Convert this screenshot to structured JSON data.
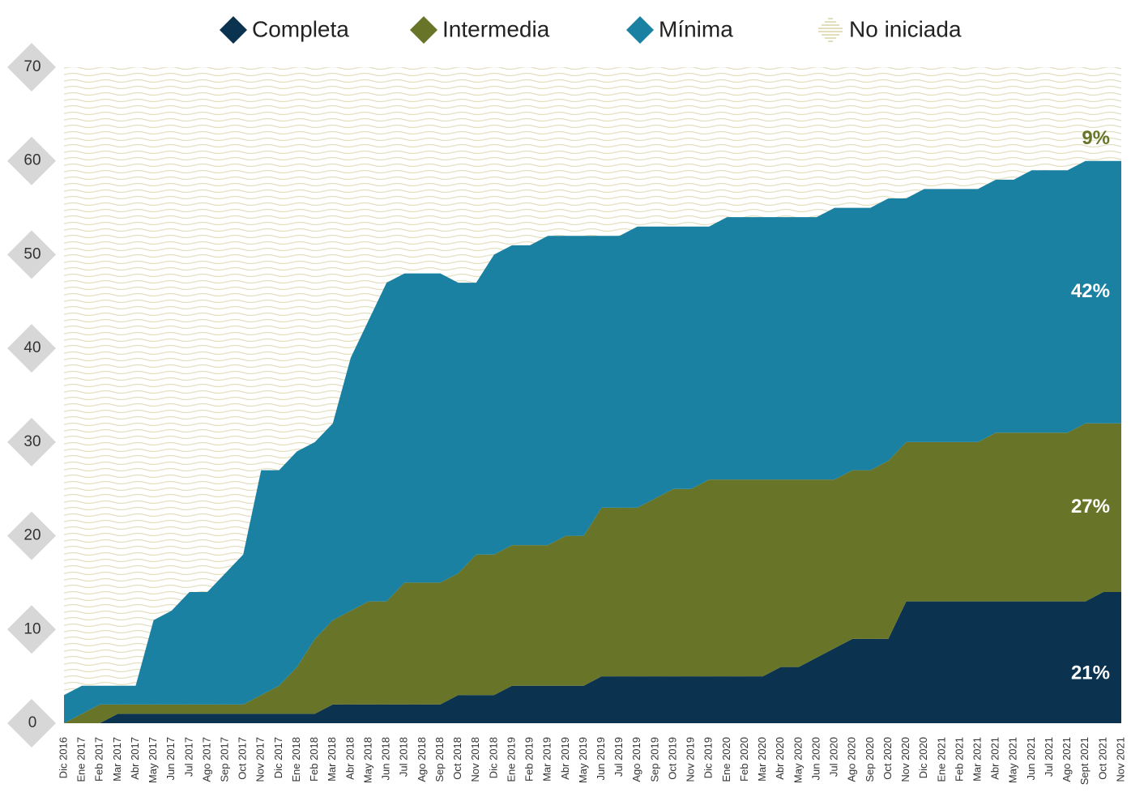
{
  "chart_data": {
    "type": "stacked_area",
    "categories": [
      "Dic 2016",
      "Ene 2017",
      "Feb 2017",
      "Mar 2017",
      "Abr 2017",
      "May 2017",
      "Jun 2017",
      "Jul 2017",
      "Ago 2017",
      "Sep 2017",
      "Oct 2017",
      "Nov 2017",
      "Dic 2017",
      "Ene 2018",
      "Feb 2018",
      "Mar 2018",
      "Abr 2018",
      "May 2018",
      "Jun 2018",
      "Jul 2018",
      "Ago 2018",
      "Sep 2018",
      "Oct 2018",
      "Nov 2018",
      "Dic 2018",
      "Ene 2019",
      "Feb 2019",
      "Mar 2019",
      "Abr 2019",
      "May 2019",
      "Jun 2019",
      "Jul 2019",
      "Ago 2019",
      "Sep 2019",
      "Oct 2019",
      "Nov 2019",
      "Dic 2019",
      "Ene 2020",
      "Feb 2020",
      "Mar 2020",
      "Abr 2020",
      "May 2020",
      "Jun 2020",
      "Jul 2020",
      "Ago 2020",
      "Sep 2020",
      "Oct 2020",
      "Nov 2020",
      "Dic 2020",
      "Ene 2021",
      "Feb 2021",
      "Mar 2021",
      "Abr 2021",
      "May 2021",
      "Jun 2021",
      "Jul 2021",
      "Ago 2021",
      "Sept 2021",
      "Oct 2021",
      "Nov 2021"
    ],
    "series": [
      {
        "name": "Completa",
        "color": "#0b3350",
        "values": [
          0,
          0,
          0,
          1,
          1,
          1,
          1,
          1,
          1,
          1,
          1,
          1,
          1,
          1,
          1,
          2,
          2,
          2,
          2,
          2,
          2,
          2,
          3,
          3,
          3,
          4,
          4,
          4,
          4,
          4,
          5,
          5,
          5,
          5,
          5,
          5,
          5,
          5,
          5,
          5,
          6,
          6,
          7,
          8,
          9,
          9,
          9,
          13,
          13,
          13,
          13,
          13,
          13,
          13,
          13,
          13,
          13,
          13,
          14,
          14
        ]
      },
      {
        "name": "Intermedia",
        "color": "#687528",
        "values": [
          0,
          1,
          2,
          1,
          1,
          1,
          1,
          1,
          1,
          1,
          1,
          2,
          3,
          5,
          8,
          9,
          10,
          11,
          11,
          13,
          13,
          13,
          13,
          15,
          15,
          15,
          15,
          15,
          16,
          16,
          18,
          18,
          18,
          19,
          20,
          20,
          21,
          21,
          21,
          21,
          20,
          20,
          19,
          18,
          18,
          18,
          19,
          17,
          17,
          17,
          17,
          17,
          18,
          18,
          18,
          18,
          18,
          19,
          18,
          18
        ]
      },
      {
        "name": "Mínima",
        "color": "#1a81a3",
        "values": [
          3,
          3,
          2,
          2,
          2,
          9,
          10,
          12,
          12,
          14,
          16,
          24,
          23,
          23,
          21,
          21,
          27,
          30,
          34,
          33,
          33,
          33,
          31,
          29,
          32,
          32,
          32,
          33,
          32,
          32,
          29,
          29,
          30,
          29,
          28,
          28,
          27,
          28,
          28,
          28,
          28,
          28,
          28,
          29,
          28,
          28,
          28,
          26,
          27,
          27,
          27,
          27,
          27,
          27,
          28,
          28,
          28,
          28,
          28,
          28
        ]
      },
      {
        "name": "No iniciada",
        "color": "#d9d3a6"
      }
    ],
    "annotations": [
      "21%",
      "27%",
      "42%",
      "9%"
    ],
    "ylim": [
      0,
      70
    ],
    "yticks": [
      0,
      10,
      20,
      30,
      40,
      50,
      60,
      70
    ]
  }
}
